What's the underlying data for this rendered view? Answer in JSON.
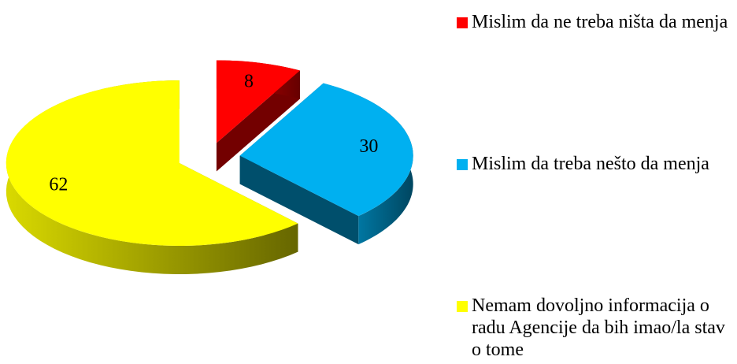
{
  "chart_data": {
    "type": "pie",
    "categories": [
      "Mislim da ne treba ništa da menja",
      "Mislim da treba nešto da menja",
      "Nemam dovoljno informacija o radu Agencije da bih imao/la stav o tome"
    ],
    "values": [
      8,
      30,
      62
    ],
    "colors": [
      "#ff0000",
      "#00b0f0",
      "#ffff00"
    ],
    "legend": "right"
  }
}
